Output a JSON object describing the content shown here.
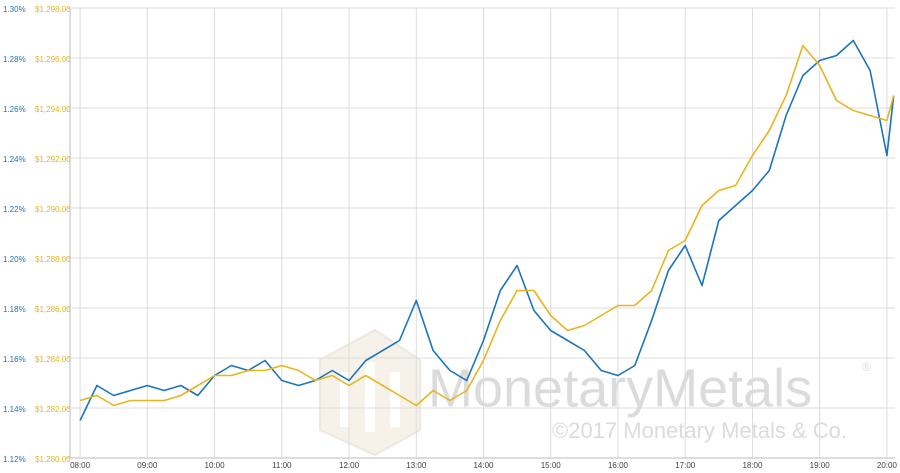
{
  "chart_data": {
    "type": "line",
    "watermark": {
      "brand": "MonetaryMetals",
      "registered": "®",
      "copyright": "©2017 Monetary Metals & Co."
    },
    "x": [
      8,
      8.25,
      8.5,
      8.75,
      9,
      9.25,
      9.5,
      9.75,
      10,
      10.25,
      10.5,
      10.75,
      11,
      11.25,
      11.5,
      11.75,
      12,
      12.25,
      12.5,
      12.75,
      13,
      13.25,
      13.5,
      13.75,
      14,
      14.25,
      14.5,
      14.75,
      15,
      15.25,
      15.5,
      15.75,
      16,
      16.25,
      16.5,
      16.75,
      17,
      17.25,
      17.5,
      17.75,
      18,
      18.25,
      18.5,
      18.75,
      19,
      19.25,
      19.5,
      19.75,
      20,
      20.1
    ],
    "xlim": [
      7.85,
      20.12
    ],
    "xticks": [
      {
        "value": 8,
        "label": "08:00"
      },
      {
        "value": 9,
        "label": "09:00"
      },
      {
        "value": 10,
        "label": "10:00"
      },
      {
        "value": 11,
        "label": "11:00"
      },
      {
        "value": 12,
        "label": "12:00"
      },
      {
        "value": 13,
        "label": "13:00"
      },
      {
        "value": 14,
        "label": "14:00"
      },
      {
        "value": 15,
        "label": "15:00"
      },
      {
        "value": 16,
        "label": "16:00"
      },
      {
        "value": 17,
        "label": "17:00"
      },
      {
        "value": 18,
        "label": "18:00"
      },
      {
        "value": 19,
        "label": "19:00"
      },
      {
        "value": 20,
        "label": "20:00"
      }
    ],
    "ylim": [
      1.12,
      1.3
    ],
    "yticks": [
      {
        "value": 1.12,
        "label": "1.12%"
      },
      {
        "value": 1.14,
        "label": "1.14%"
      },
      {
        "value": 1.16,
        "label": "1.16%"
      },
      {
        "value": 1.18,
        "label": "1.18%"
      },
      {
        "value": 1.2,
        "label": "1.20%"
      },
      {
        "value": 1.22,
        "label": "1.22%"
      },
      {
        "value": 1.24,
        "label": "1.24%"
      },
      {
        "value": 1.26,
        "label": "1.26%"
      },
      {
        "value": 1.28,
        "label": "1.28%"
      },
      {
        "value": 1.3,
        "label": "1.30%"
      }
    ],
    "y2lim": [
      1280,
      1298
    ],
    "y2ticks": [
      {
        "value": 1280,
        "label": "$1,280.00"
      },
      {
        "value": 1282,
        "label": "$1,282.00"
      },
      {
        "value": 1284,
        "label": "$1,284.00"
      },
      {
        "value": 1286,
        "label": "$1,286.00"
      },
      {
        "value": 1288,
        "label": "$1,288.00"
      },
      {
        "value": 1290,
        "label": "$1,290.00"
      },
      {
        "value": 1292,
        "label": "$1,292.00"
      },
      {
        "value": 1294,
        "label": "$1,294.00"
      },
      {
        "value": 1296,
        "label": "$1,296.00"
      },
      {
        "value": 1298,
        "label": "$1,298.00"
      }
    ],
    "grid": true,
    "series": [
      {
        "color": "#1a75bb",
        "values": [
          1.135,
          1.149,
          1.145,
          1.147,
          1.149,
          1.147,
          1.149,
          1.145,
          1.153,
          1.157,
          1.155,
          1.159,
          1.151,
          1.149,
          1.151,
          1.155,
          1.151,
          1.159,
          1.163,
          1.167,
          1.183,
          1.163,
          1.155,
          1.151,
          1.167,
          1.187,
          1.197,
          1.179,
          1.171,
          1.167,
          1.163,
          1.155,
          1.153,
          1.157,
          1.175,
          1.195,
          1.205,
          1.189,
          1.215,
          1.221,
          1.227,
          1.235,
          1.257,
          1.273,
          1.279,
          1.281,
          1.287,
          1.275,
          1.241,
          1.265
        ]
      },
      {
        "color": "#e8b51e",
        "axis": "y2",
        "values": [
          1282.3,
          1282.5,
          1282.1,
          1282.3,
          1282.3,
          1282.3,
          1282.5,
          1282.9,
          1283.3,
          1283.3,
          1283.5,
          1283.5,
          1283.7,
          1283.5,
          1283.1,
          1283.3,
          1282.9,
          1283.3,
          1282.9,
          1282.5,
          1282.1,
          1282.7,
          1282.3,
          1282.7,
          1283.9,
          1285.5,
          1286.7,
          1286.7,
          1285.7,
          1285.1,
          1285.3,
          1285.7,
          1286.1,
          1286.1,
          1286.7,
          1288.3,
          1288.7,
          1290.1,
          1290.7,
          1290.9,
          1292.1,
          1293.1,
          1294.5,
          1296.5,
          1295.7,
          1294.3,
          1293.9,
          1293.7,
          1293.5,
          1294.5
        ]
      }
    ]
  }
}
